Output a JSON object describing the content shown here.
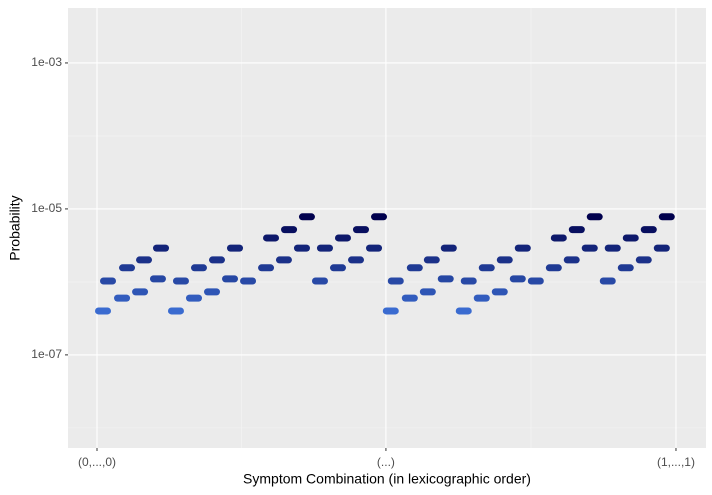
{
  "chart_data": {
    "type": "scatter",
    "x_label": "Symptom Combination (in lexicographic order)",
    "y_label": "Probability",
    "log_y": true,
    "grid": true,
    "color_low": "#3a6bd0",
    "color_high": "#00004d",
    "xlim": [
      -24.6,
      538.5
    ],
    "ylim": [
      5.3e-09,
      0.00566
    ],
    "xticks": [
      {
        "value": 1,
        "label": "(0,...,0)"
      },
      {
        "value": 256,
        "label": "(...)"
      },
      {
        "value": 512,
        "label": "(1,...,1)"
      }
    ],
    "yticks": [
      {
        "value": 1e-07,
        "label": "1e-07"
      },
      {
        "value": 1e-05,
        "label": "1e-05"
      },
      {
        "value": 0.001,
        "label": "1e-03"
      }
    ],
    "x": [
      6.3,
      10.7,
      23.1,
      27.5,
      39,
      42.5,
      54.8,
      57.5,
      70.7,
      75.1,
      86.6,
      91,
      102.5,
      106.9,
      118.4,
      122.8,
      134.3,
      150.2,
      154.6,
      166,
      170.5,
      181.9,
      186.3,
      197.8,
      202.2,
      213.7,
      218.1,
      229.6,
      234,
      245.5,
      249.9,
      260.3,
      264.7,
      277.1,
      281.5,
      293,
      296.5,
      308.8,
      311.5,
      324.7,
      329.1,
      340.6,
      345,
      356.5,
      360.9,
      372.4,
      376.8,
      388.3,
      404.2,
      408.6,
      420,
      424.5,
      435.9,
      440.3,
      451.8,
      456.2,
      467.7,
      472.1,
      483.6,
      488,
      499.5,
      503.9
    ],
    "values": [
      4e-07,
      1.03e-06,
      6e-07,
      1.56e-06,
      7.3e-07,
      2e-06,
      1.1e-06,
      2.9e-06,
      4e-07,
      1.03e-06,
      6e-07,
      1.56e-06,
      7.3e-07,
      2e-06,
      1.1e-06,
      2.9e-06,
      1.03e-06,
      1.56e-06,
      4e-06,
      2e-06,
      5.2e-06,
      2.9e-06,
      7.8e-06,
      1.03e-06,
      2.9e-06,
      1.56e-06,
      4e-06,
      2e-06,
      5.2e-06,
      2.9e-06,
      7.8e-06,
      4e-07,
      1.03e-06,
      6e-07,
      1.56e-06,
      7.3e-07,
      2e-06,
      1.1e-06,
      2.9e-06,
      4e-07,
      1.03e-06,
      6e-07,
      1.56e-06,
      7.3e-07,
      2e-06,
      1.1e-06,
      2.9e-06,
      1.03e-06,
      1.56e-06,
      4e-06,
      2e-06,
      5.2e-06,
      2.9e-06,
      7.8e-06,
      1.03e-06,
      2.9e-06,
      1.56e-06,
      4e-06,
      2e-06,
      5.2e-06,
      2.9e-06,
      7.8e-06
    ]
  }
}
